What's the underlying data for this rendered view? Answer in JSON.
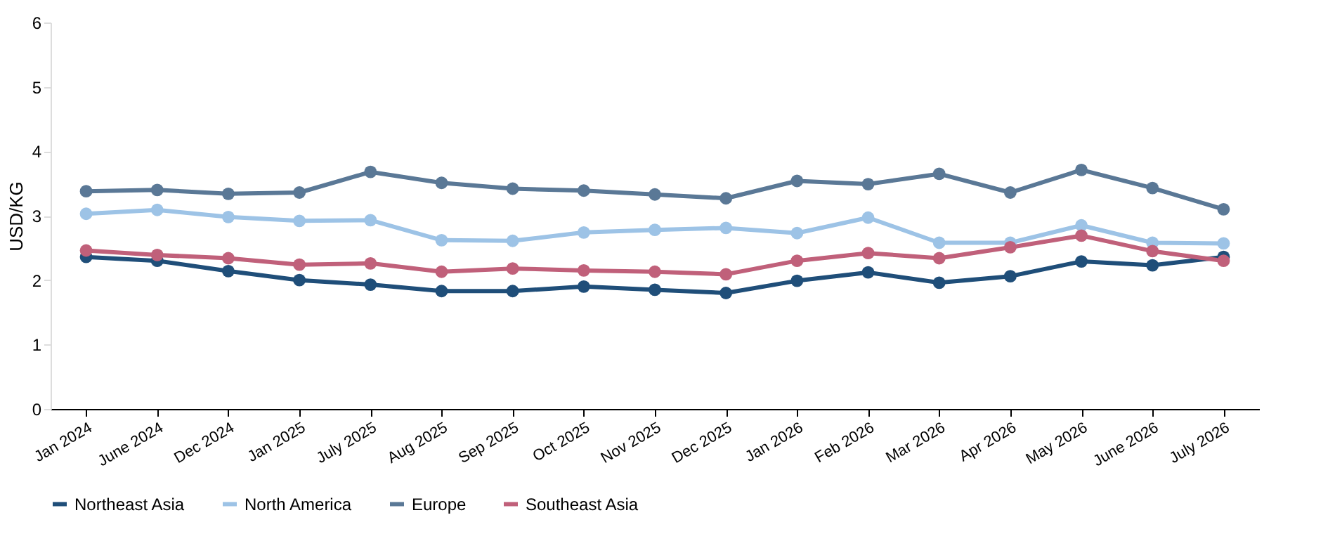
{
  "chart_data": {
    "type": "line",
    "ylabel": "USD/KG",
    "categories": [
      "Jan 2024",
      "June 2024",
      "Dec 2024",
      "Jan 2025",
      "July 2025",
      "Aug 2025",
      "Sep 2025",
      "Oct 2025",
      "Nov 2025",
      "Dec 2025",
      "Jan 2026",
      "Feb 2026",
      "Mar 2026",
      "Apr 2026",
      "May 2026",
      "June 2026",
      "July 2026"
    ],
    "ylim": [
      0,
      6
    ],
    "yticks": [
      0,
      1,
      2,
      3,
      4,
      5,
      6
    ],
    "grid": false,
    "legend": "bottom",
    "marker": "circle",
    "line_style": "solid",
    "series": [
      {
        "name": "Northeast Asia",
        "color": "#1f4e79",
        "values": [
          2.36,
          2.3,
          2.14,
          2.0,
          1.93,
          1.83,
          1.83,
          1.9,
          1.85,
          1.8,
          1.99,
          2.12,
          1.96,
          2.06,
          2.29,
          2.23,
          2.36
        ]
      },
      {
        "name": "North America",
        "color": "#9dc3e6",
        "values": [
          3.03,
          3.09,
          2.98,
          2.92,
          2.93,
          2.62,
          2.61,
          2.74,
          2.78,
          2.81,
          2.73,
          2.97,
          2.58,
          2.58,
          2.85,
          2.58,
          2.57
        ]
      },
      {
        "name": "Europe",
        "color": "#5a7896",
        "values": [
          3.38,
          3.4,
          3.34,
          3.36,
          3.68,
          3.51,
          3.42,
          3.39,
          3.33,
          3.27,
          3.54,
          3.49,
          3.65,
          3.36,
          3.71,
          3.43,
          3.1
        ]
      },
      {
        "name": "Southeast Asia",
        "color": "#c0607a",
        "values": [
          2.46,
          2.39,
          2.34,
          2.24,
          2.26,
          2.13,
          2.18,
          2.15,
          2.13,
          2.09,
          2.3,
          2.42,
          2.34,
          2.51,
          2.69,
          2.45,
          2.3
        ]
      }
    ]
  }
}
